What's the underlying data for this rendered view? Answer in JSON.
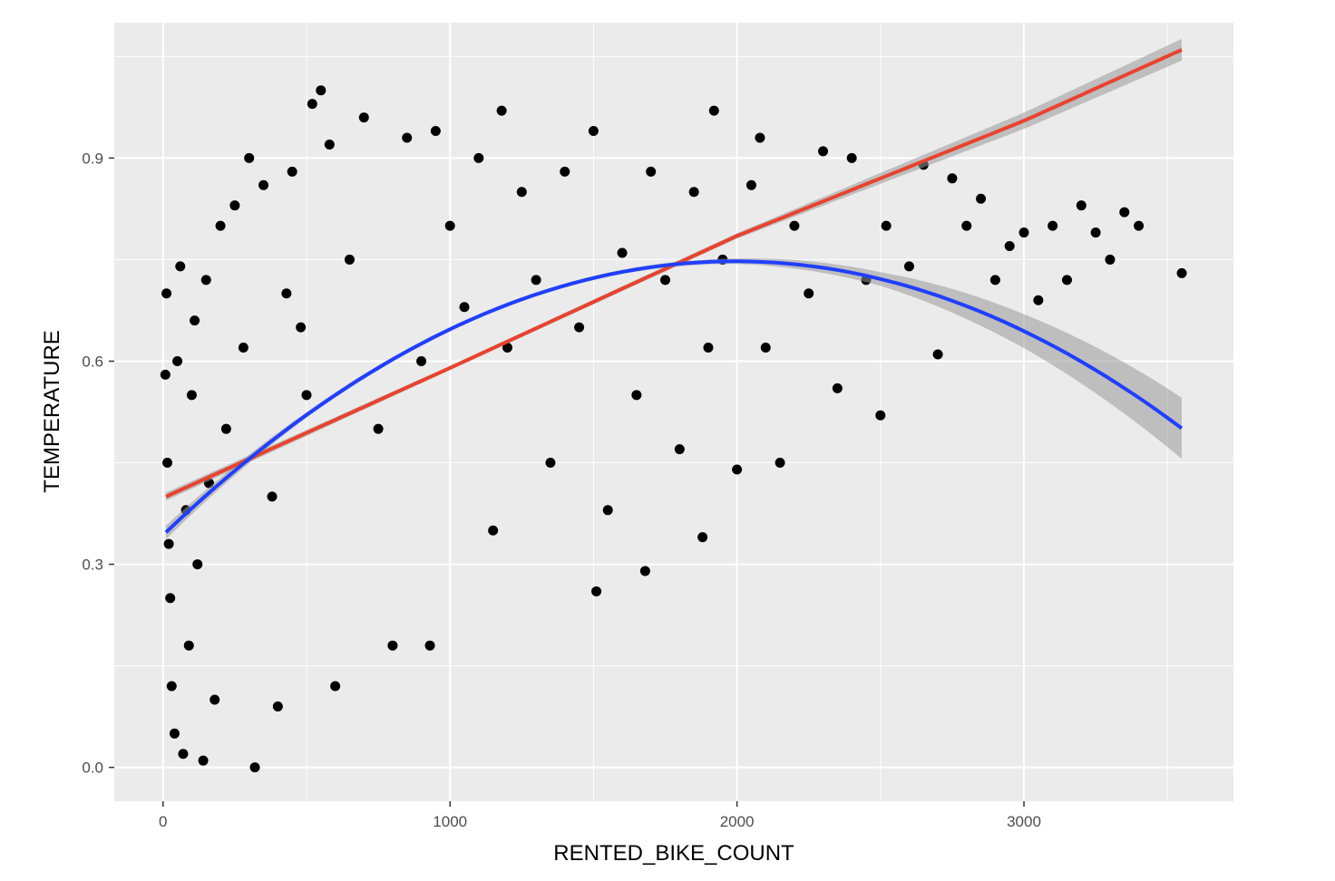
{
  "chart_data": {
    "type": "scatter",
    "title": "",
    "xlabel": "RENTED_BIKE_COUNT",
    "ylabel": "TEMPERATURE",
    "xlim": [
      -170,
      3730
    ],
    "ylim": [
      -0.05,
      1.1
    ],
    "x_ticks": [
      0,
      1000,
      2000,
      3000
    ],
    "x_tick_labels": [
      "0",
      "1000",
      "2000",
      "3000"
    ],
    "y_ticks": [
      0.0,
      0.3,
      0.6,
      0.9
    ],
    "y_tick_labels": [
      "0.0",
      "0.3",
      "0.6",
      "0.9"
    ],
    "grid": true,
    "legend": "none",
    "colors": {
      "panel": "#ebebeb",
      "grid": "#ffffff",
      "points": "#000000",
      "linear_fit": "#e8432e",
      "quadratic_fit": "#1f3fff",
      "confidence_band": "#999999"
    },
    "series": [
      {
        "kind": "points",
        "points": [
          [
            8,
            0.58
          ],
          [
            12,
            0.7
          ],
          [
            15,
            0.45
          ],
          [
            20,
            0.33
          ],
          [
            25,
            0.25
          ],
          [
            30,
            0.12
          ],
          [
            40,
            0.05
          ],
          [
            50,
            0.6
          ],
          [
            60,
            0.74
          ],
          [
            70,
            0.02
          ],
          [
            80,
            0.38
          ],
          [
            90,
            0.18
          ],
          [
            100,
            0.55
          ],
          [
            110,
            0.66
          ],
          [
            120,
            0.3
          ],
          [
            140,
            0.01
          ],
          [
            150,
            0.72
          ],
          [
            160,
            0.42
          ],
          [
            180,
            0.1
          ],
          [
            200,
            0.8
          ],
          [
            220,
            0.5
          ],
          [
            250,
            0.83
          ],
          [
            280,
            0.62
          ],
          [
            300,
            0.9
          ],
          [
            320,
            0.0
          ],
          [
            350,
            0.86
          ],
          [
            380,
            0.4
          ],
          [
            400,
            0.09
          ],
          [
            430,
            0.7
          ],
          [
            450,
            0.88
          ],
          [
            480,
            0.65
          ],
          [
            500,
            0.55
          ],
          [
            520,
            0.98
          ],
          [
            550,
            1.0
          ],
          [
            580,
            0.92
          ],
          [
            600,
            0.12
          ],
          [
            650,
            0.75
          ],
          [
            700,
            0.96
          ],
          [
            750,
            0.5
          ],
          [
            800,
            0.18
          ],
          [
            850,
            0.93
          ],
          [
            900,
            0.6
          ],
          [
            930,
            0.18
          ],
          [
            950,
            0.94
          ],
          [
            1000,
            0.8
          ],
          [
            1050,
            0.68
          ],
          [
            1100,
            0.9
          ],
          [
            1150,
            0.35
          ],
          [
            1180,
            0.97
          ],
          [
            1200,
            0.62
          ],
          [
            1250,
            0.85
          ],
          [
            1300,
            0.72
          ],
          [
            1350,
            0.45
          ],
          [
            1400,
            0.88
          ],
          [
            1450,
            0.65
          ],
          [
            1500,
            0.94
          ],
          [
            1510,
            0.26
          ],
          [
            1550,
            0.38
          ],
          [
            1600,
            0.76
          ],
          [
            1650,
            0.55
          ],
          [
            1680,
            0.29
          ],
          [
            1700,
            0.88
          ],
          [
            1750,
            0.72
          ],
          [
            1800,
            0.47
          ],
          [
            1850,
            0.85
          ],
          [
            1880,
            0.34
          ],
          [
            1900,
            0.62
          ],
          [
            1920,
            0.97
          ],
          [
            1950,
            0.75
          ],
          [
            2000,
            0.44
          ],
          [
            2050,
            0.86
          ],
          [
            2080,
            0.93
          ],
          [
            2100,
            0.62
          ],
          [
            2150,
            0.45
          ],
          [
            2200,
            0.8
          ],
          [
            2250,
            0.7
          ],
          [
            2300,
            0.91
          ],
          [
            2350,
            0.56
          ],
          [
            2400,
            0.9
          ],
          [
            2450,
            0.72
          ],
          [
            2500,
            0.52
          ],
          [
            2520,
            0.8
          ],
          [
            2600,
            0.74
          ],
          [
            2650,
            0.89
          ],
          [
            2700,
            0.61
          ],
          [
            2750,
            0.87
          ],
          [
            2800,
            0.8
          ],
          [
            2850,
            0.84
          ],
          [
            2900,
            0.72
          ],
          [
            2950,
            0.77
          ],
          [
            3000,
            0.79
          ],
          [
            3050,
            0.69
          ],
          [
            3100,
            0.8
          ],
          [
            3150,
            0.72
          ],
          [
            3200,
            0.83
          ],
          [
            3250,
            0.79
          ],
          [
            3300,
            0.75
          ],
          [
            3350,
            0.82
          ],
          [
            3400,
            0.8
          ],
          [
            3550,
            0.73
          ]
        ]
      },
      {
        "kind": "fit",
        "method": "linear",
        "color_key": "linear_fit",
        "x": [
          10,
          1000,
          2000,
          3000,
          3550
        ],
        "y": [
          0.4,
          0.59,
          0.785,
          0.955,
          1.06
        ],
        "ci_halfwidth": [
          0.006,
          0.003,
          0.004,
          0.012,
          0.016
        ]
      },
      {
        "kind": "fit",
        "method": "quadratic",
        "color_key": "quadratic_fit",
        "x": [
          10,
          500,
          1000,
          1500,
          2000,
          2500,
          3000,
          3550
        ],
        "y": [
          0.335,
          0.535,
          0.655,
          0.72,
          0.742,
          0.715,
          0.645,
          0.505
        ],
        "ci_halfwidth": [
          0.01,
          0.004,
          0.003,
          0.003,
          0.004,
          0.01,
          0.025,
          0.045
        ]
      }
    ]
  }
}
